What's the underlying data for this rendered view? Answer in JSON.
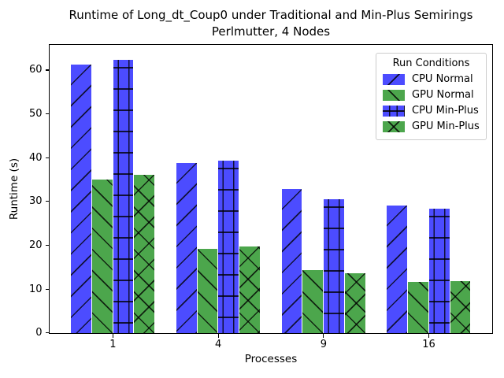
{
  "chart_data": {
    "type": "bar",
    "title": "Runtime of Long_dt_Coup0 under Traditional and Min-Plus Semirings",
    "subtitle": "Perlmutter, 4 Nodes",
    "xlabel": "Processes",
    "ylabel": "Runtime (s)",
    "categories": [
      "1",
      "4",
      "9",
      "16"
    ],
    "series": [
      {
        "name": "CPU Normal",
        "color": "#4c4cff",
        "hatch": "/",
        "values": [
          61.2,
          38.8,
          32.9,
          29.2
        ]
      },
      {
        "name": "GPU Normal",
        "color": "#4ca64c",
        "hatch": "\\",
        "values": [
          35.0,
          19.3,
          14.3,
          11.6
        ]
      },
      {
        "name": "CPU Min-Plus",
        "color": "#4c4cff",
        "hatch": "+",
        "values": [
          62.3,
          39.4,
          30.5,
          28.4
        ]
      },
      {
        "name": "GPU Min-Plus",
        "color": "#4ca64c",
        "hatch": "x",
        "values": [
          36.2,
          19.8,
          13.7,
          11.9
        ]
      }
    ],
    "yticks": [
      0,
      10,
      20,
      30,
      40,
      50,
      60
    ],
    "ylim": [
      0,
      65.7
    ],
    "xlim_index": [
      -0.6,
      3.6
    ],
    "bar_group_width": 0.8,
    "grid": false,
    "legend_title": "Run Conditions",
    "legend_position": "upper right"
  }
}
